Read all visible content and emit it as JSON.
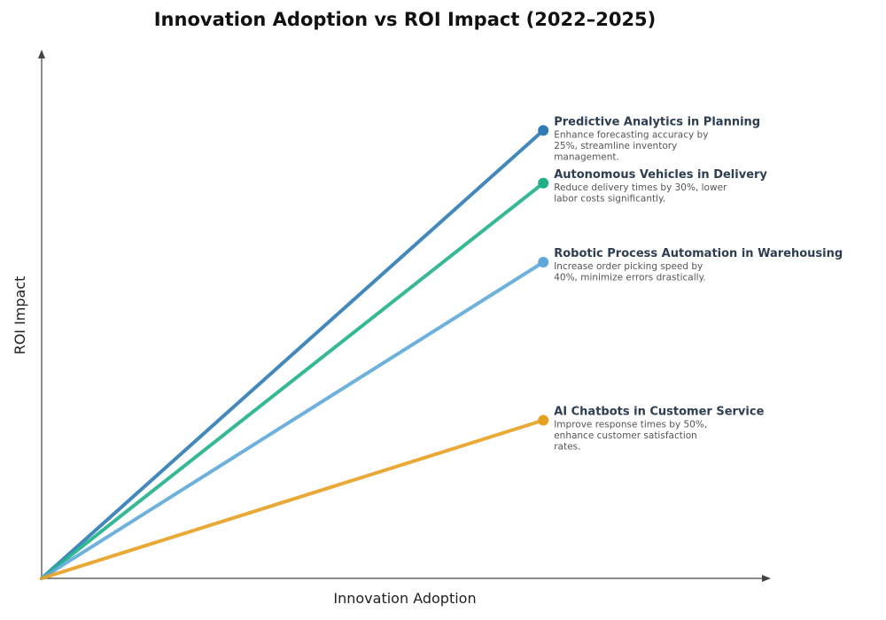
{
  "chart_data": {
    "type": "line",
    "title": "Innovation Adoption vs ROI Impact (2022–2025)",
    "xlabel": "Innovation Adoption",
    "ylabel": "ROI Impact",
    "grid": false,
    "legend": "inline-end-labels",
    "series": [
      {
        "name": "Predictive Analytics in Planning",
        "description": [
          "Enhance forecasting accuracy by",
          "25%, streamline inventory",
          "management."
        ],
        "color": "#2e7bb5",
        "x": [
          0,
          1
        ],
        "y": [
          0,
          0.85
        ]
      },
      {
        "name": "Autonomous Vehicles in Delivery",
        "description": [
          "Reduce delivery times by 30%, lower",
          "labor costs significantly."
        ],
        "color": "#1fb08a",
        "x": [
          0,
          1
        ],
        "y": [
          0,
          0.75
        ]
      },
      {
        "name": "Robotic Process Automation in Warehousing",
        "description": [
          "Increase order picking speed by",
          "40%, minimize errors drastically."
        ],
        "color": "#5da8d8",
        "x": [
          0,
          1
        ],
        "y": [
          0,
          0.6
        ]
      },
      {
        "name": "AI Chatbots in Customer Service",
        "description": [
          "Improve response times by 50%,",
          "enhance customer satisfaction",
          "rates."
        ],
        "color": "#e8a020",
        "x": [
          0,
          1
        ],
        "y": [
          0,
          0.3
        ]
      }
    ],
    "xlim": [
      0,
      1.45
    ],
    "ylim": [
      0,
      1.0
    ]
  }
}
